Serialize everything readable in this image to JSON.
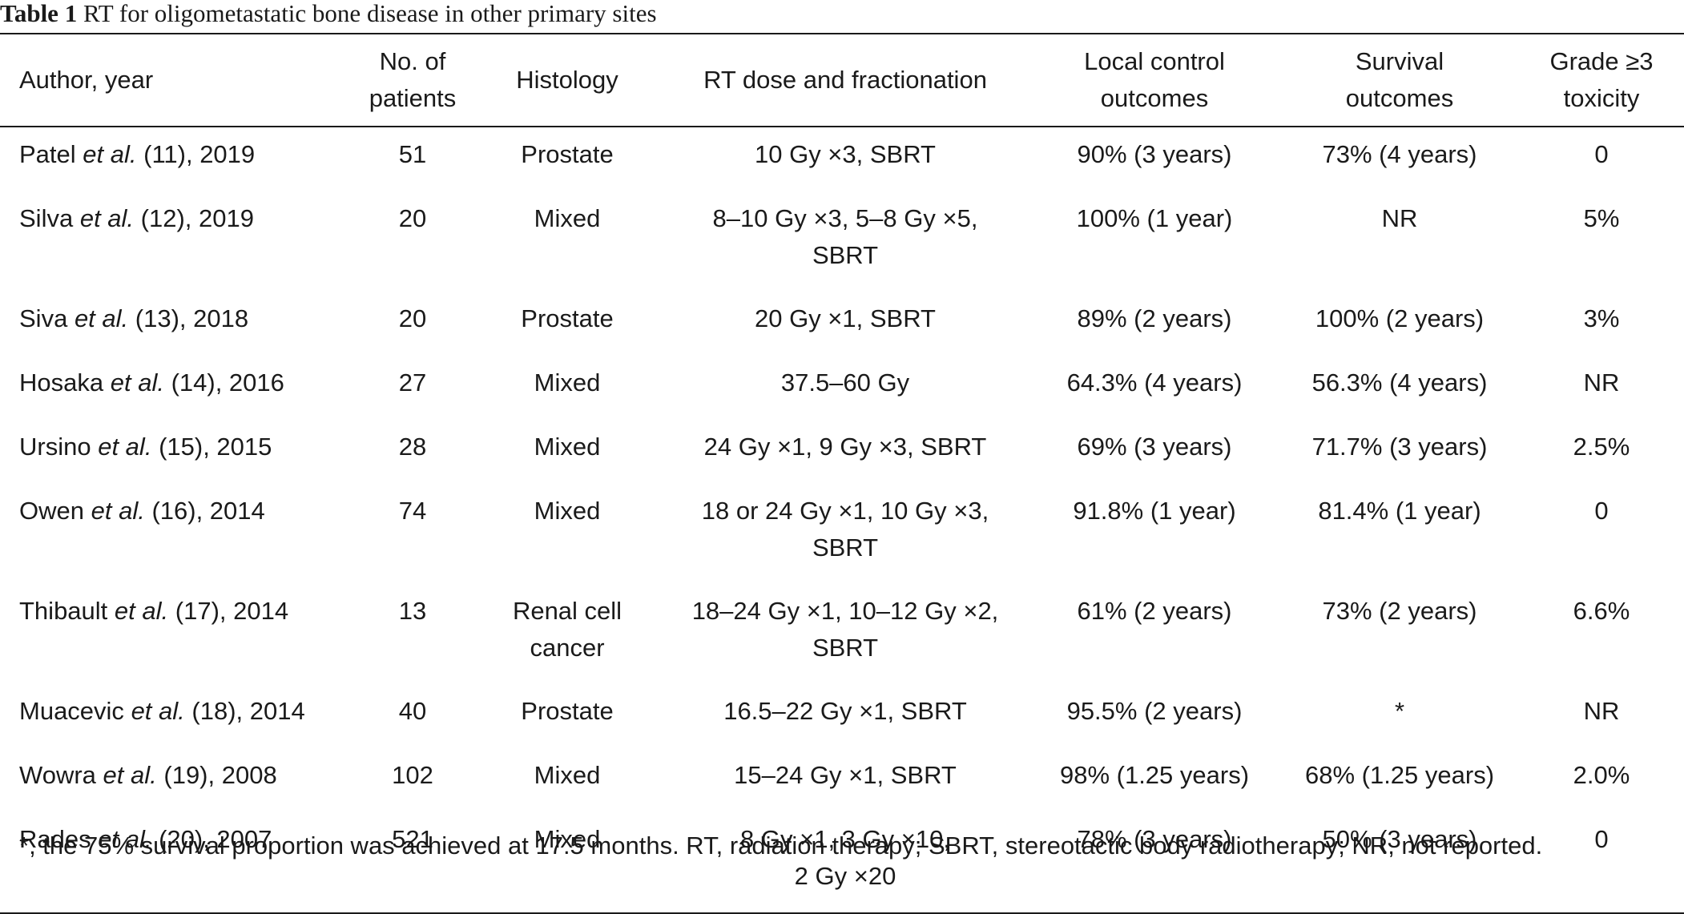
{
  "caption": {
    "label": "Table 1",
    "title": "RT for oligometastatic bone disease in other primary sites"
  },
  "table": {
    "headers": {
      "author": "Author, year",
      "patients_line1": "No. of",
      "patients_line2": "patients",
      "histology": "Histology",
      "rt": "RT dose and fractionation",
      "local_line1": "Local control",
      "local_line2": "outcomes",
      "survival_line1": "Survival",
      "survival_line2": "outcomes",
      "toxicity_line1": "Grade ≥3",
      "toxicity_line2": "toxicity"
    },
    "rows": [
      {
        "name": "Patel",
        "etal": "et al.",
        "ref_year": "(11), 2019",
        "patients": "51",
        "histology_1": "Prostate",
        "histology_2": "",
        "rt_1": "10 Gy ×3, SBRT",
        "rt_2": "",
        "local": "90% (3 years)",
        "survival": "73% (4 years)",
        "toxicity": "0"
      },
      {
        "name": "Silva",
        "etal": "et al.",
        "ref_year": "(12), 2019",
        "patients": "20",
        "histology_1": "Mixed",
        "histology_2": "",
        "rt_1": "8–10 Gy ×3, 5–8 Gy ×5,",
        "rt_2": "SBRT",
        "local": "100% (1 year)",
        "survival": "NR",
        "toxicity": "5%"
      },
      {
        "name": "Siva",
        "etal": "et al.",
        "ref_year": "(13), 2018",
        "patients": "20",
        "histology_1": "Prostate",
        "histology_2": "",
        "rt_1": "20 Gy ×1, SBRT",
        "rt_2": "",
        "local": "89% (2 years)",
        "survival": "100% (2 years)",
        "toxicity": "3%"
      },
      {
        "name": "Hosaka",
        "etal": "et al.",
        "ref_year": "(14), 2016",
        "patients": "27",
        "histology_1": "Mixed",
        "histology_2": "",
        "rt_1": "37.5–60 Gy",
        "rt_2": "",
        "local": "64.3% (4 years)",
        "survival": "56.3% (4 years)",
        "toxicity": "NR"
      },
      {
        "name": "Ursino",
        "etal": "et al.",
        "ref_year": "(15), 2015",
        "patients": "28",
        "histology_1": "Mixed",
        "histology_2": "",
        "rt_1": "24 Gy ×1, 9 Gy ×3, SBRT",
        "rt_2": "",
        "local": "69% (3 years)",
        "survival": "71.7% (3 years)",
        "toxicity": "2.5%"
      },
      {
        "name": "Owen",
        "etal": "et al.",
        "ref_year": "(16), 2014",
        "patients": "74",
        "histology_1": "Mixed",
        "histology_2": "",
        "rt_1": "18 or 24 Gy ×1, 10 Gy ×3,",
        "rt_2": "SBRT",
        "local": "91.8% (1 year)",
        "survival": "81.4% (1 year)",
        "toxicity": "0"
      },
      {
        "name": "Thibault",
        "etal": "et al.",
        "ref_year": "(17), 2014",
        "patients": "13",
        "histology_1": "Renal cell",
        "histology_2": "cancer",
        "rt_1": "18–24 Gy ×1, 10–12 Gy ×2,",
        "rt_2": "SBRT",
        "local": "61% (2 years)",
        "survival": "73% (2 years)",
        "toxicity": "6.6%"
      },
      {
        "name": "Muacevic",
        "etal": "et al.",
        "ref_year": "(18), 2014",
        "patients": "40",
        "histology_1": "Prostate",
        "histology_2": "",
        "rt_1": "16.5–22 Gy ×1, SBRT",
        "rt_2": "",
        "local": "95.5% (2 years)",
        "survival": "*",
        "toxicity": "NR"
      },
      {
        "name": "Wowra",
        "etal": "et al.",
        "ref_year": "(19), 2008",
        "patients": "102",
        "histology_1": "Mixed",
        "histology_2": "",
        "rt_1": "15–24 Gy ×1, SBRT",
        "rt_2": "",
        "local": "98% (1.25 years)",
        "survival": "68% (1.25 years)",
        "toxicity": "2.0%"
      },
      {
        "name": "Rades",
        "etal": "et al.",
        "ref_year": "(20), 2007",
        "patients": "521",
        "histology_1": "Mixed",
        "histology_2": "",
        "rt_1": "8 Gy ×1, 3 Gy ×10,",
        "rt_2": "2 Gy ×20",
        "local": "78% (3 years)",
        "survival": "50% (3 years)",
        "toxicity": "0"
      }
    ]
  },
  "footnote": "*, the 75% survival proportion was achieved at 17.5 months. RT, radiation therapy; SBRT, stereotactic body radiotherapy; NR, not reported."
}
